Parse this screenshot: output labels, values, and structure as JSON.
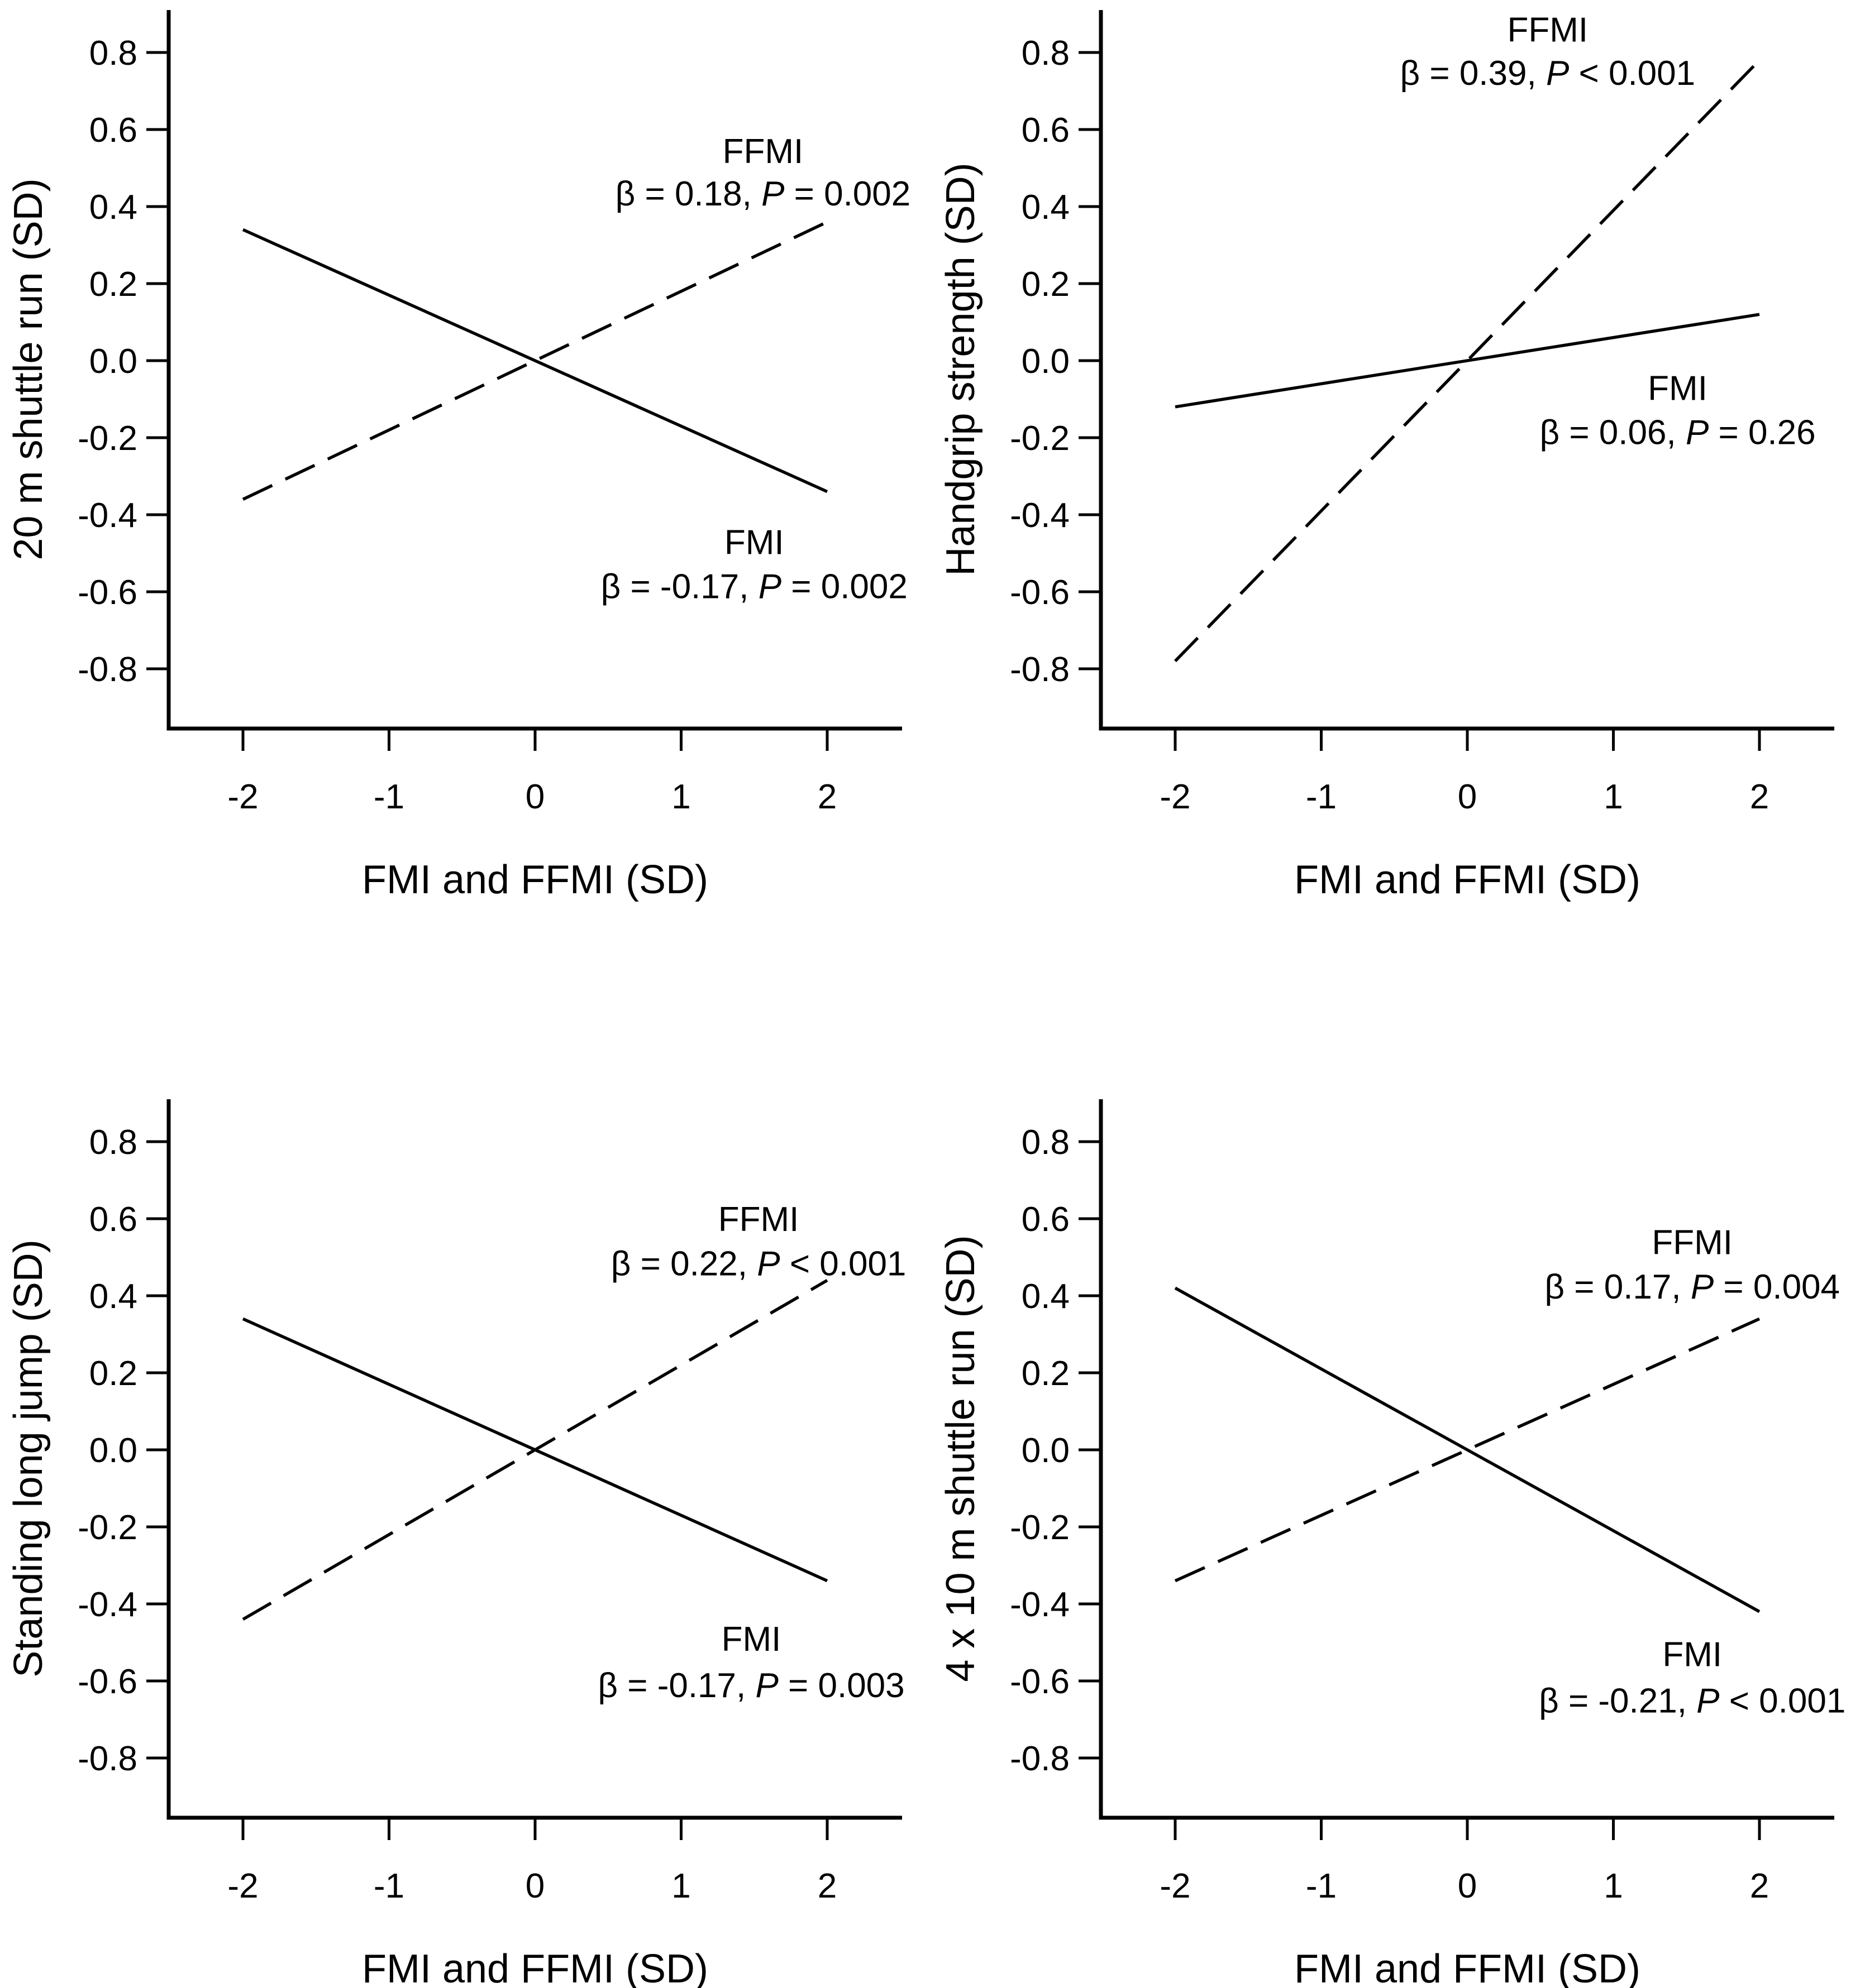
{
  "page": {
    "background": "#ffffff",
    "line_color": "#000000",
    "title": ""
  },
  "chart_data": [
    {
      "id": "top-left",
      "type": "line",
      "title": "",
      "xlabel": "FMI and FFMI (SD)",
      "ylabel": "20 m shuttle run (SD)",
      "xlim": [
        -2.5,
        2.5
      ],
      "ylim": [
        -0.95,
        0.91
      ],
      "x_ticks": [
        "-2",
        "-1",
        "0",
        "1",
        "2"
      ],
      "x_tick_values": [
        -2,
        -1,
        0,
        1,
        2
      ],
      "y_ticks": [
        "0.8",
        "0.6",
        "0.4",
        "0.2",
        "0.0",
        "-0.2",
        "-0.4",
        "-0.6",
        "-0.8"
      ],
      "y_tick_values": [
        0.8,
        0.6,
        0.4,
        0.2,
        0.0,
        -0.2,
        -0.4,
        -0.6,
        -0.8
      ],
      "grid": false,
      "legend_position": "in-plot annotations",
      "series": [
        {
          "name": "FFMI",
          "line_style": "dashed",
          "beta": 0.18,
          "p_value": "P = 0.002",
          "x": [
            -2,
            2
          ],
          "y": [
            -0.36,
            0.36
          ],
          "annotation": {
            "title": "FFMI",
            "pre": "β = 0.18, ",
            "italic": "P",
            "post": " = 0.002",
            "anchor_x_sd": 1.56,
            "line1_y_sd": 0.545,
            "line2_y_sd": 0.435
          }
        },
        {
          "name": "FMI",
          "line_style": "solid",
          "beta": -0.17,
          "p_value": "P = 0.002",
          "x": [
            -2,
            2
          ],
          "y": [
            0.34,
            -0.34
          ],
          "annotation": {
            "title": "FMI",
            "pre": "β = -0.17, ",
            "italic": "P",
            "post": " = 0.002",
            "anchor_x_sd": 1.5,
            "line1_y_sd": -0.47,
            "line2_y_sd": -0.585
          }
        }
      ]
    },
    {
      "id": "top-right",
      "type": "line",
      "title": "",
      "xlabel": "FMI and FFMI (SD)",
      "ylabel": "Handgrip strength (SD)",
      "xlim": [
        -2.5,
        2.5
      ],
      "ylim": [
        -0.95,
        0.91
      ],
      "x_ticks": [
        "-2",
        "-1",
        "0",
        "1",
        "2"
      ],
      "x_tick_values": [
        -2,
        -1,
        0,
        1,
        2
      ],
      "y_ticks": [
        "0.8",
        "0.6",
        "0.4",
        "0.2",
        "0.0",
        "-0.2",
        "-0.4",
        "-0.6",
        "-0.8"
      ],
      "y_tick_values": [
        0.8,
        0.6,
        0.4,
        0.2,
        0.0,
        -0.2,
        -0.4,
        -0.6,
        -0.8
      ],
      "grid": false,
      "legend_position": "in-plot annotations",
      "series": [
        {
          "name": "FFMI",
          "line_style": "dashed",
          "beta": 0.39,
          "p_value": "P < 0.001",
          "x": [
            -2,
            2
          ],
          "y": [
            -0.78,
            0.78
          ],
          "annotation": {
            "title": "FFMI",
            "pre": "β = 0.39, ",
            "italic": "P",
            "post": " < 0.001",
            "anchor_x_sd": 0.55,
            "line1_y_sd": 0.86,
            "line2_y_sd": 0.748
          }
        },
        {
          "name": "FMI",
          "line_style": "solid",
          "beta": 0.06,
          "p_value": "P = 0.26",
          "x": [
            -2,
            2
          ],
          "y": [
            -0.12,
            0.12
          ],
          "annotation": {
            "title": "FMI",
            "pre": "β = 0.06, ",
            "italic": "P",
            "post": " = 0.26",
            "anchor_x_sd": 1.44,
            "line1_y_sd": -0.07,
            "line2_y_sd": -0.185
          }
        }
      ]
    },
    {
      "id": "bottom-left",
      "type": "line",
      "title": "",
      "xlabel": "FMI and FFMI (SD)",
      "ylabel": "Standing long jump (SD)",
      "xlim": [
        -2.5,
        2.5
      ],
      "ylim": [
        -0.95,
        0.91
      ],
      "x_ticks": [
        "-2",
        "-1",
        "0",
        "1",
        "2"
      ],
      "x_tick_values": [
        -2,
        -1,
        0,
        1,
        2
      ],
      "y_ticks": [
        "0.8",
        "0.6",
        "0.4",
        "0.2",
        "0.0",
        "-0.2",
        "-0.4",
        "-0.6",
        "-0.8"
      ],
      "y_tick_values": [
        0.8,
        0.6,
        0.4,
        0.2,
        0.0,
        -0.2,
        -0.4,
        -0.6,
        -0.8
      ],
      "grid": false,
      "legend_position": "in-plot annotations",
      "series": [
        {
          "name": "FFMI",
          "line_style": "dashed",
          "beta": 0.22,
          "p_value": "P < 0.001",
          "x": [
            -2,
            2
          ],
          "y": [
            -0.44,
            0.44
          ],
          "annotation": {
            "title": "FFMI",
            "pre": "β = 0.22, ",
            "italic": "P",
            "post": " < 0.001",
            "anchor_x_sd": 1.53,
            "line1_y_sd": 0.6,
            "line2_y_sd": 0.485
          }
        },
        {
          "name": "FMI",
          "line_style": "solid",
          "beta": -0.17,
          "p_value": "P = 0.003",
          "x": [
            -2,
            2
          ],
          "y": [
            0.34,
            -0.34
          ],
          "annotation": {
            "title": "FMI",
            "pre": "β = -0.17, ",
            "italic": "P",
            "post": " = 0.003",
            "anchor_x_sd": 1.48,
            "line1_y_sd": -0.49,
            "line2_y_sd": -0.61
          }
        }
      ]
    },
    {
      "id": "bottom-right",
      "type": "line",
      "title": "",
      "xlabel": "FMI and FFMI (SD)",
      "ylabel": "4 x 10 m shuttle run (SD)",
      "xlim": [
        -2.5,
        2.5
      ],
      "ylim": [
        -0.95,
        0.91
      ],
      "x_ticks": [
        "-2",
        "-1",
        "0",
        "1",
        "2"
      ],
      "x_tick_values": [
        -2,
        -1,
        0,
        1,
        2
      ],
      "y_ticks": [
        "0.8",
        "0.6",
        "0.4",
        "0.2",
        "0.0",
        "-0.2",
        "-0.4",
        "-0.6",
        "-0.8"
      ],
      "y_tick_values": [
        0.8,
        0.6,
        0.4,
        0.2,
        0.0,
        -0.2,
        -0.4,
        -0.6,
        -0.8
      ],
      "grid": false,
      "legend_position": "in-plot annotations",
      "series": [
        {
          "name": "FFMI",
          "line_style": "dashed",
          "beta": 0.17,
          "p_value": "P = 0.004",
          "x": [
            -2,
            2
          ],
          "y": [
            -0.34,
            0.34
          ],
          "annotation": {
            "title": "FFMI",
            "pre": "β = 0.17, ",
            "italic": "P",
            "post": " = 0.004",
            "anchor_x_sd": 1.54,
            "line1_y_sd": 0.54,
            "line2_y_sd": 0.425
          }
        },
        {
          "name": "FMI",
          "line_style": "solid",
          "beta": -0.21,
          "p_value": "P < 0.001",
          "x": [
            -2,
            2
          ],
          "y": [
            0.42,
            -0.42
          ],
          "annotation": {
            "title": "FMI",
            "pre": "β = -0.21, ",
            "italic": "P",
            "post": " < 0.001",
            "anchor_x_sd": 1.54,
            "line1_y_sd": -0.53,
            "line2_y_sd": -0.65
          }
        }
      ]
    }
  ]
}
